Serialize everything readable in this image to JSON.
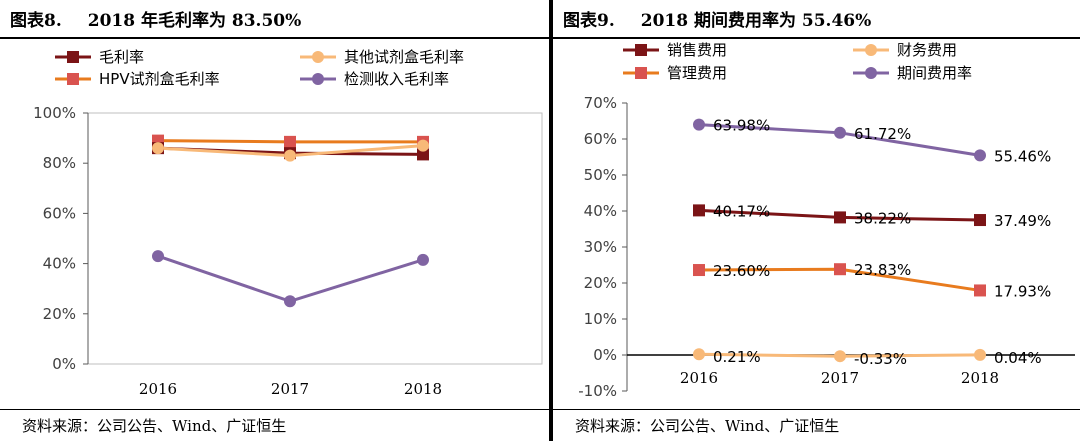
{
  "left": {
    "fig_label": "图表8.",
    "title": "2018 年毛利率为 83.50%",
    "source": "资料来源：公司公告、Wind、广证恒生"
  },
  "right": {
    "fig_label": "图表9.",
    "title": "2018 期间费用率为 55.46%",
    "source": "资料来源：公司公告、Wind、广证恒生"
  },
  "colors": {
    "dark_red": "#7B1416",
    "light_orange": "#F8B978",
    "orange": "#E87B1E",
    "red_marker": "#D9534F",
    "purple": "#8064A2",
    "gray_axis": "#595959"
  },
  "chart_data": [
    {
      "type": "line",
      "categories": [
        "2016",
        "2017",
        "2018"
      ],
      "ylim": [
        0,
        100
      ],
      "yticks": [
        "0%",
        "20%",
        "40%",
        "60%",
        "80%",
        "100%"
      ],
      "grid": false,
      "legend_position": "top",
      "series": [
        {
          "name": "毛利率",
          "values": [
            86,
            84,
            83.5
          ],
          "marker": "square"
        },
        {
          "name": "其他试剂盒毛利率",
          "values": [
            86,
            83,
            87
          ],
          "marker": "circle"
        },
        {
          "name": "HPV试剂盒毛利率",
          "values": [
            89,
            88.5,
            88.5
          ],
          "marker": "square"
        },
        {
          "name": "检测收入毛利率",
          "values": [
            43,
            25,
            41.5
          ],
          "marker": "circle"
        }
      ]
    },
    {
      "type": "line",
      "categories": [
        "2016",
        "2017",
        "2018"
      ],
      "ylim": [
        -10,
        70
      ],
      "yticks": [
        "-10%",
        "0%",
        "10%",
        "20%",
        "30%",
        "40%",
        "50%",
        "60%",
        "70%"
      ],
      "grid": false,
      "legend_position": "top",
      "series": [
        {
          "name": "销售费用",
          "values": [
            40.17,
            38.22,
            37.49
          ],
          "labels": [
            "40.17%",
            "38.22%",
            "37.49%"
          ],
          "marker": "square"
        },
        {
          "name": "财务费用",
          "values": [
            0.21,
            -0.33,
            0.04
          ],
          "labels": [
            "0.21%",
            "-0.33%",
            "0.04%"
          ],
          "marker": "circle"
        },
        {
          "name": "管理费用",
          "values": [
            23.6,
            23.83,
            17.93
          ],
          "labels": [
            "23.60%",
            "23.83%",
            "17.93%"
          ],
          "marker": "square"
        },
        {
          "name": "期间费用率",
          "values": [
            63.98,
            61.72,
            55.46
          ],
          "labels": [
            "63.98%",
            "61.72%",
            "55.46%"
          ],
          "marker": "circle"
        }
      ]
    }
  ]
}
